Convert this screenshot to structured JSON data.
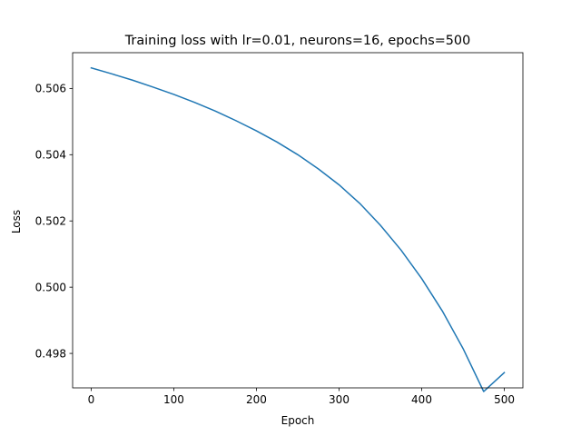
{
  "chart_data": {
    "type": "line",
    "title": "Training loss with lr=0.01, neurons=16, epochs=500",
    "xlabel": "Epoch",
    "ylabel": "Loss",
    "xlim": [
      -22.5,
      522.5
    ],
    "ylim": [
      0.49696,
      0.50708
    ],
    "xticks": [
      0,
      100,
      200,
      300,
      400,
      500
    ],
    "xtick_labels": [
      "0",
      "100",
      "200",
      "300",
      "400",
      "500"
    ],
    "yticks": [
      0.498,
      0.5,
      0.502,
      0.504,
      0.506
    ],
    "ytick_labels": [
      "0.498",
      "0.500",
      "0.502",
      "0.504",
      "0.506"
    ],
    "grid": false,
    "legend": "none",
    "series": [
      {
        "color": "#1f77b4",
        "x": [
          0,
          25,
          50,
          75,
          100,
          125,
          150,
          175,
          200,
          225,
          250,
          275,
          300,
          325,
          350,
          375,
          400,
          425,
          450,
          475,
          500
        ],
        "y": [
          0.50662,
          0.50644,
          0.50625,
          0.50604,
          0.50582,
          0.50558,
          0.50532,
          0.50503,
          0.50472,
          0.50438,
          0.504,
          0.50357,
          0.50309,
          0.50253,
          0.50187,
          0.50112,
          0.50026,
          0.49928,
          0.49815,
          0.49685,
          0.49742
        ]
      }
    ]
  }
}
